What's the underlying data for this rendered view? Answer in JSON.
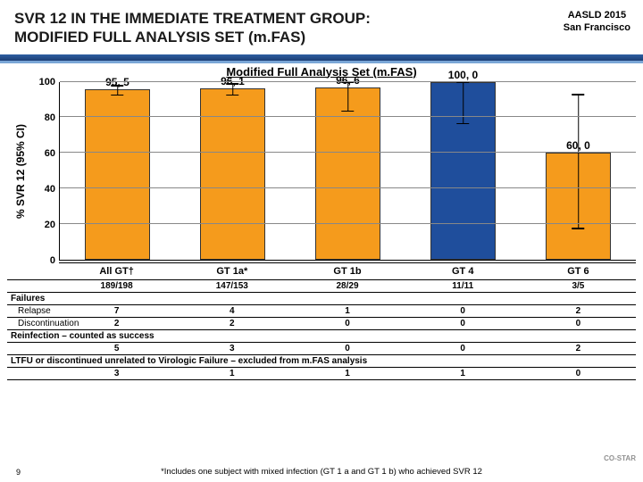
{
  "header": {
    "title_l1": "SVR 12 IN THE IMMEDIATE TREATMENT GROUP:",
    "title_l2": "MODIFIED FULL ANALYSIS SET (m.FAS)",
    "conf_l1": "AASLD 2015",
    "conf_l2": "San Francisco"
  },
  "chart": {
    "subtitle": "Modified Full Analysis Set (m.FAS)",
    "ylabel": "% SVR 12 (95% CI)",
    "ylim": [
      0,
      100
    ],
    "ytick_step": 20,
    "categories": [
      "All GT†",
      "GT 1a*",
      "GT 1b",
      "GT 4",
      "GT 6"
    ],
    "values": [
      95.5,
      96.1,
      96.6,
      100.0,
      60.0
    ],
    "value_labels": [
      "95, 5",
      "96, 1",
      "96, 6",
      "100, 0",
      "60, 0"
    ],
    "ci_low": [
      92,
      92,
      83,
      76,
      17
    ],
    "ci_high": [
      98,
      99,
      100,
      100,
      93
    ],
    "bar_colors": [
      "#f59b1c",
      "#f59b1c",
      "#f59b1c",
      "#1f4e9c",
      "#f59b1c"
    ],
    "grid_color": "#888888",
    "counts": [
      "189/198",
      "147/153",
      "28/29",
      "11/11",
      "3/5"
    ]
  },
  "table": {
    "failures_hdr": "Failures",
    "relapse": {
      "label": "Relapse",
      "vals": [
        "7",
        "4",
        "1",
        "0",
        "2"
      ]
    },
    "discont": {
      "label": "Discontinuation",
      "vals": [
        "2",
        "2",
        "0",
        "0",
        "0"
      ]
    },
    "reinf_hdr": "Reinfection – counted as success",
    "reinf_vals": [
      "5",
      "3",
      "0",
      "0",
      "2"
    ],
    "ltfu_hdr": "LTFU or discontinued unrelated to Virologic Failure – excluded from m.FAS analysis",
    "ltfu_vals": [
      "3",
      "1",
      "1",
      "1",
      "0"
    ]
  },
  "footer": {
    "page": "9",
    "note": "*Includes one subject with mixed infection (GT 1 a and GT 1 b) who achieved SVR 12",
    "logo": "CO-STAR"
  }
}
